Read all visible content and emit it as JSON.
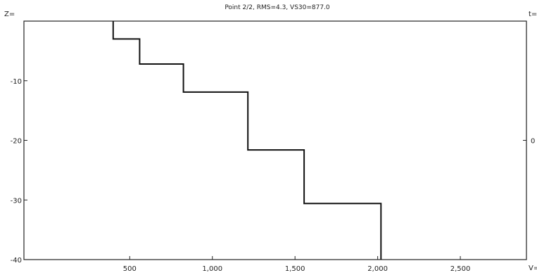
{
  "chart_data": {
    "type": "line",
    "title": "Point 2/2, RMS=4.3, VS30=877.0",
    "ylabel": "Z=",
    "xlabel": "V=",
    "right_axis_label": "t=",
    "right_ticks": [
      "0"
    ],
    "xlim": [
      -140,
      2900
    ],
    "ylim": [
      -40,
      0
    ],
    "x_ticks": [
      "500",
      "1,000",
      "1,500",
      "2,000",
      "2,500"
    ],
    "x_tick_values": [
      500,
      1000,
      1500,
      2000,
      2500
    ],
    "y_ticks": [
      "-10",
      "-20",
      "-30",
      "-40"
    ],
    "y_tick_values": [
      -10,
      -20,
      -30,
      -40
    ],
    "grid": false,
    "series": [
      {
        "x": [
          400,
          400,
          560,
          560,
          825,
          825,
          1215,
          1215,
          1555,
          1555,
          2020,
          2020
        ],
        "y": [
          0,
          -3,
          -3,
          -7.2,
          -7.2,
          -11.9,
          -11.9,
          -21.6,
          -21.6,
          -30.6,
          -30.6,
          -40
        ]
      }
    ]
  }
}
